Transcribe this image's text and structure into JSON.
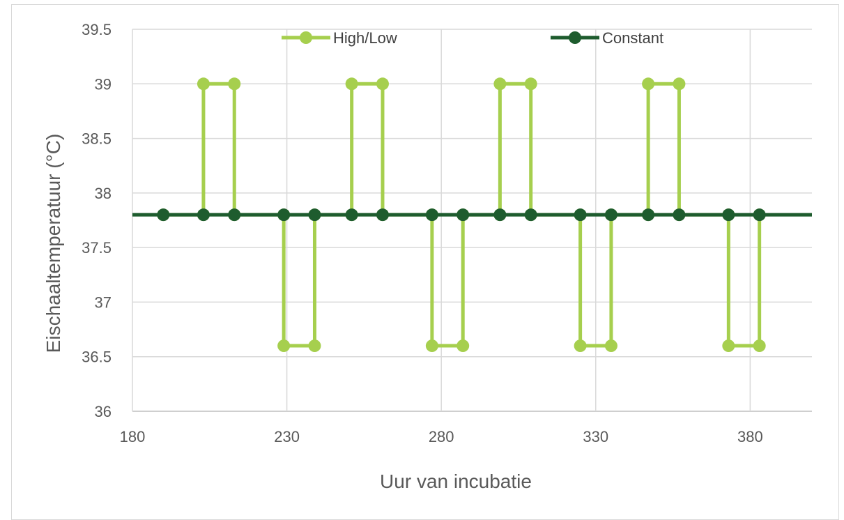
{
  "chart_data": {
    "type": "line",
    "xlabel": "Uur van incubatie",
    "ylabel": "Eischaaltemperatuur (°C)",
    "xlim": [
      180,
      400
    ],
    "ylim": [
      36,
      39.5
    ],
    "x_ticks": [
      "180",
      "230",
      "280",
      "330",
      "380"
    ],
    "y_ticks": [
      "36",
      "36.5",
      "37",
      "37.5",
      "38",
      "38.5",
      "39",
      "39.5"
    ],
    "grid": true,
    "legend": "top",
    "series": [
      {
        "name": "High/Low",
        "color": "#a6cf4e",
        "x": [
          190,
          203,
          203,
          213,
          213,
          229,
          229,
          239,
          239,
          251,
          251,
          261,
          261,
          277,
          277,
          287,
          287,
          299,
          299,
          309,
          309,
          325,
          325,
          335,
          335,
          347,
          347,
          357,
          357,
          373,
          373,
          383,
          383
        ],
        "y": [
          37.8,
          37.8,
          39.0,
          39.0,
          37.8,
          37.8,
          36.6,
          36.6,
          37.8,
          37.8,
          39.0,
          39.0,
          37.8,
          37.8,
          36.6,
          36.6,
          37.8,
          37.8,
          39.0,
          39.0,
          37.8,
          37.8,
          36.6,
          36.6,
          37.8,
          37.8,
          39.0,
          39.0,
          37.8,
          37.8,
          36.6,
          36.6,
          37.8
        ]
      },
      {
        "name": "Constant",
        "color": "#1e5c2e",
        "x": [
          190,
          203,
          213,
          229,
          239,
          251,
          261,
          277,
          287,
          299,
          309,
          325,
          335,
          347,
          357,
          373,
          383
        ],
        "y": [
          37.8,
          37.8,
          37.8,
          37.8,
          37.8,
          37.8,
          37.8,
          37.8,
          37.8,
          37.8,
          37.8,
          37.8,
          37.8,
          37.8,
          37.8,
          37.8,
          37.8
        ]
      }
    ]
  }
}
